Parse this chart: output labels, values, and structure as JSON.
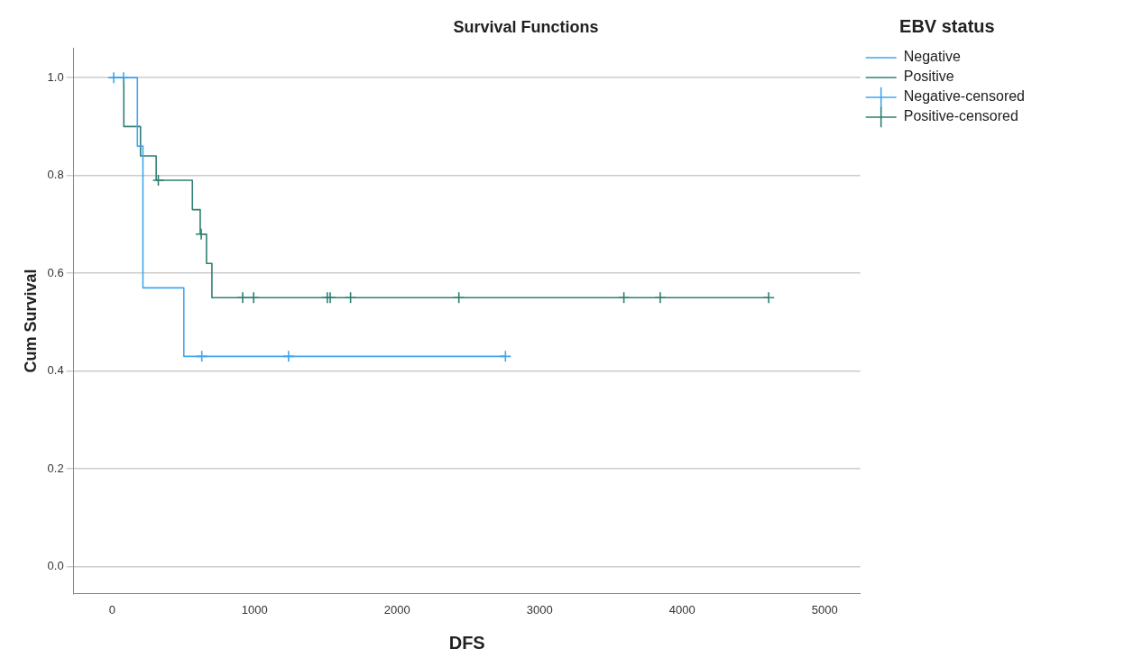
{
  "chart_data": {
    "type": "step",
    "title": "Survival Functions",
    "xlabel": "DFS",
    "ylabel": "Cum Survival",
    "legend_title": "EBV status",
    "legend": "right",
    "grid": "y",
    "xlim": [
      -270,
      5250
    ],
    "xticks": [
      0,
      1000,
      2000,
      3000,
      4000,
      5000
    ],
    "ylim": [
      -0.055,
      1.06
    ],
    "yticks": [
      {
        "value": 0,
        "label": "0.0"
      },
      {
        "value": 0.2,
        "label": "0.2"
      },
      {
        "value": 0.4,
        "label": "0.4"
      },
      {
        "value": 0.6,
        "label": "0.6"
      },
      {
        "value": 0.8,
        "label": "0.8"
      },
      {
        "value": 1,
        "label": "1.0"
      }
    ],
    "series": [
      {
        "name": "Negative",
        "color": "#42a5ee",
        "marker": "none",
        "line_style": "solid",
        "x": [
          0,
          177,
          216,
          503,
          2760
        ],
        "values": [
          1,
          0.86,
          0.57,
          0.43,
          0.43
        ]
      },
      {
        "name": "Positive",
        "color": "#2f7f72",
        "marker": "none",
        "line_style": "solid",
        "x": [
          0,
          82,
          199,
          309,
          563,
          618,
          662,
          700,
          4607
        ],
        "values": [
          1,
          0.9,
          0.84,
          0.79,
          0.73,
          0.68,
          0.62,
          0.55,
          0.55
        ]
      },
      {
        "name": "Negative-censored",
        "type": "scatter",
        "color": "#42a5ee",
        "marker": "cross",
        "x": [
          11,
          80,
          629,
          1238,
          2760
        ],
        "values": [
          1,
          1,
          0.43,
          0.43,
          0.43
        ]
      },
      {
        "name": "Positive-censored",
        "type": "scatter",
        "color": "#2f7f72",
        "marker": "cross",
        "x": [
          324,
          625,
          916,
          993,
          1510,
          1530,
          1673,
          2433,
          3591,
          3846,
          4607
        ],
        "values": [
          0.79,
          0.68,
          0.55,
          0.55,
          0.55,
          0.55,
          0.55,
          0.55,
          0.55,
          0.55,
          0.55
        ]
      }
    ]
  }
}
